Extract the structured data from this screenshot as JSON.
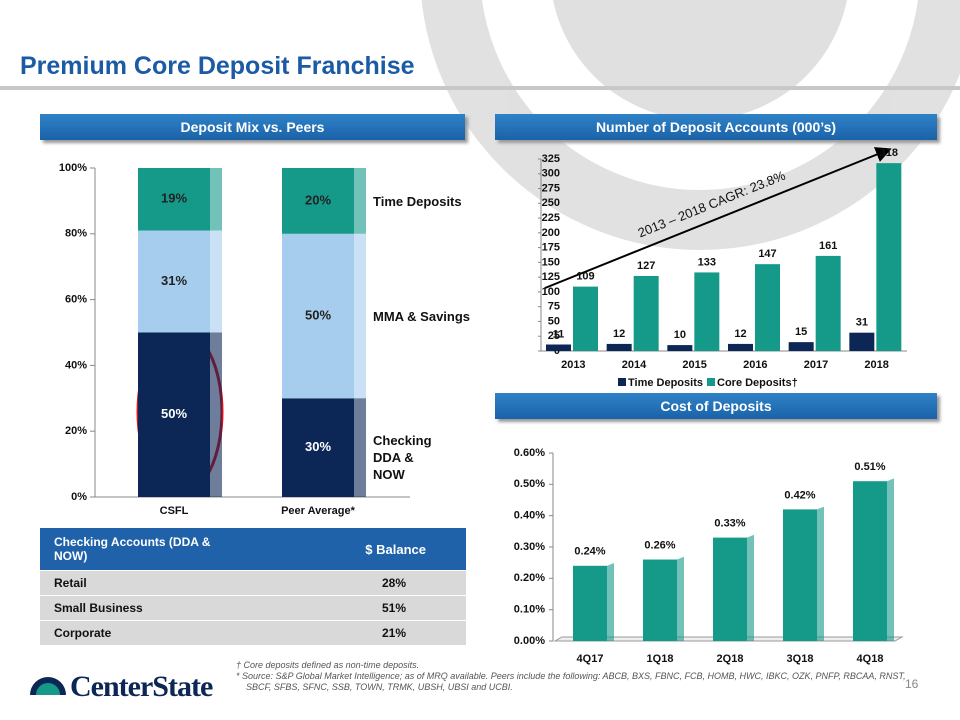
{
  "title": "Premium Core Deposit Franchise",
  "chart_data": [
    {
      "type": "stacked-bar",
      "title": "Deposit Mix vs. Peers",
      "categories": [
        "CSFL",
        "Peer Average*"
      ],
      "series": [
        {
          "name": "Checking DDA & NOW",
          "color": "#0c2756",
          "values": [
            50,
            30
          ],
          "value_labels": [
            "50%",
            "30%"
          ]
        },
        {
          "name": "MMA & Savings",
          "color": "#a6cdee",
          "values": [
            31,
            50
          ],
          "value_labels": [
            "31%",
            "50%"
          ]
        },
        {
          "name": "Time Deposits",
          "color": "#159a8a",
          "values": [
            19,
            20
          ],
          "value_labels": [
            "19%",
            "20%"
          ]
        }
      ],
      "ylim": [
        0,
        100
      ],
      "yticks": [
        {
          "value": 0,
          "label": "0%"
        },
        {
          "value": 20,
          "label": "20%"
        },
        {
          "value": 40,
          "label": "40%"
        },
        {
          "value": 60,
          "label": "60%"
        },
        {
          "value": 80,
          "label": "80%"
        },
        {
          "value": 100,
          "label": "100%"
        }
      ]
    },
    {
      "type": "grouped-bar",
      "title": "Number of Deposit Accounts (000’s)",
      "categories": [
        "2013",
        "2014",
        "2015",
        "2016",
        "2017",
        "2018"
      ],
      "series": [
        {
          "name": "Time Deposits",
          "color": "#0c2756",
          "values": [
            11,
            12,
            10,
            12,
            15,
            31
          ]
        },
        {
          "name": "Core Deposits†",
          "color": "#159a8a",
          "values": [
            109,
            127,
            133,
            147,
            161,
            318
          ]
        }
      ],
      "ylim": [
        0,
        325
      ],
      "yticks": [
        0,
        25,
        50,
        75,
        100,
        125,
        150,
        175,
        200,
        225,
        250,
        275,
        300,
        325
      ],
      "annotation": "2013 – 2018 CAGR: 23.8%"
    },
    {
      "type": "bar",
      "title": "Cost of Deposits",
      "categories": [
        "4Q17",
        "1Q18",
        "2Q18",
        "3Q18",
        "4Q18"
      ],
      "values": [
        0.24,
        0.26,
        0.33,
        0.42,
        0.51
      ],
      "value_labels": [
        "0.24%",
        "0.26%",
        "0.33%",
        "0.42%",
        "0.51%"
      ],
      "color": "#159a8a",
      "ylim": [
        0,
        0.6
      ],
      "yticks": [
        {
          "value": 0,
          "label": "0.00%"
        },
        {
          "value": 0.1,
          "label": "0.10%"
        },
        {
          "value": 0.2,
          "label": "0.20%"
        },
        {
          "value": 0.3,
          "label": "0.30%"
        },
        {
          "value": 0.4,
          "label": "0.40%"
        },
        {
          "value": 0.5,
          "label": "0.50%"
        },
        {
          "value": 0.6,
          "label": "0.60%"
        }
      ]
    }
  ],
  "table": {
    "header": [
      "Checking Accounts (DDA & NOW)",
      "$ Balance"
    ],
    "rows": [
      [
        "Retail",
        "28%"
      ],
      [
        "Small Business",
        "51%"
      ],
      [
        "Corporate",
        "21%"
      ]
    ]
  },
  "footnotes": [
    "† Core deposits defined as non-time deposits.",
    "* Source: S&P Global Market Intelligence; as of MRQ available. Peers include the following: ABCB, BXS, FBNC, FCB, HOMB, HWC, IBKC, OZK, PNFP, RBCAA, RNST, SBCF, SFBS, SFNC, SSB, TOWN, TRMK, UBSH, UBSI and UCBI."
  ],
  "logo": "CenterState",
  "page_number": "16"
}
